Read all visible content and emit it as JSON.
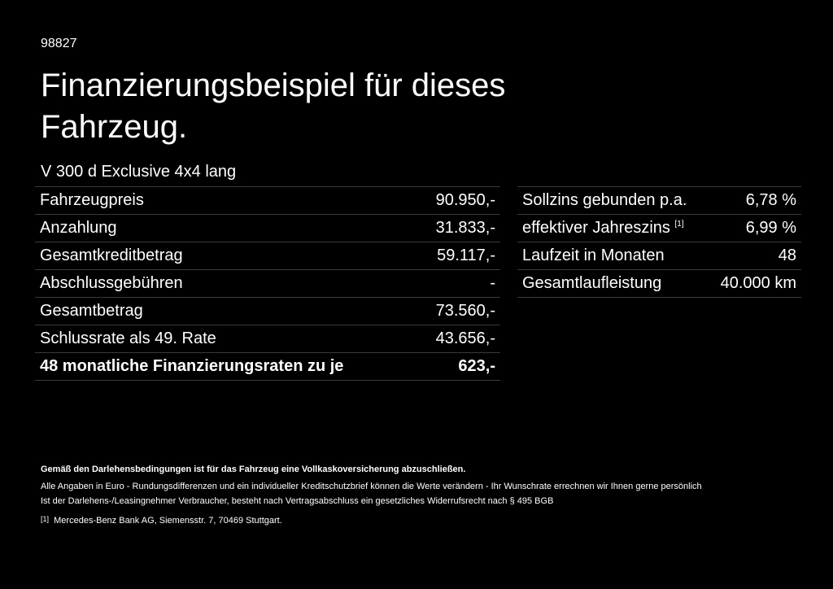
{
  "code": "98827",
  "title": "Finanzierungsbeispiel für dieses Fahrzeug.",
  "model": "V 300 d Exclusive 4x4 lang",
  "left_table": [
    {
      "label": "Fahrzeugpreis",
      "value": "90.950,-"
    },
    {
      "label": "Anzahlung",
      "value": "31.833,-"
    },
    {
      "label": "Gesamtkreditbetrag",
      "value": "59.117,-"
    },
    {
      "label": "Abschlussgebühren",
      "value": "-"
    },
    {
      "label": "Gesamtbetrag",
      "value": "73.560,-"
    },
    {
      "label": "Schlussrate als 49. Rate",
      "value": "43.656,-"
    },
    {
      "label": "48 monatliche Finanzierungsraten zu je",
      "value": "623,-"
    }
  ],
  "right_table": [
    {
      "label": "Sollzins gebunden p.a.",
      "value": "6,78 %"
    },
    {
      "label": "effektiver Jahreszins",
      "sup": "[1]",
      "value": "6,99 %"
    },
    {
      "label": "Laufzeit in Monaten",
      "value": "48"
    },
    {
      "label": "Gesamtlaufleistung",
      "value": "40.000 km"
    }
  ],
  "footer": {
    "insurance": "Gemäß den Darlehensbedingungen ist für das Fahrzeug eine Vollkaskoversicherung abzuschließen.",
    "line1": "Alle Angaben in Euro - Rundungsdifferenzen und ein individueller Kreditschutzbrief können die Werte verändern - Ihr Wunschrate errechnen wir Ihnen gerne persönlich",
    "line2": "Ist der Darlehens-/Leasingnehmer Verbraucher, besteht nach Vertragsabschluss ein gesetzliches Widerrufsrecht nach § 495 BGB",
    "note_marker": "[1]",
    "note": "Mercedes-Benz Bank AG, Siemensstr. 7, 70469 Stuttgart."
  }
}
